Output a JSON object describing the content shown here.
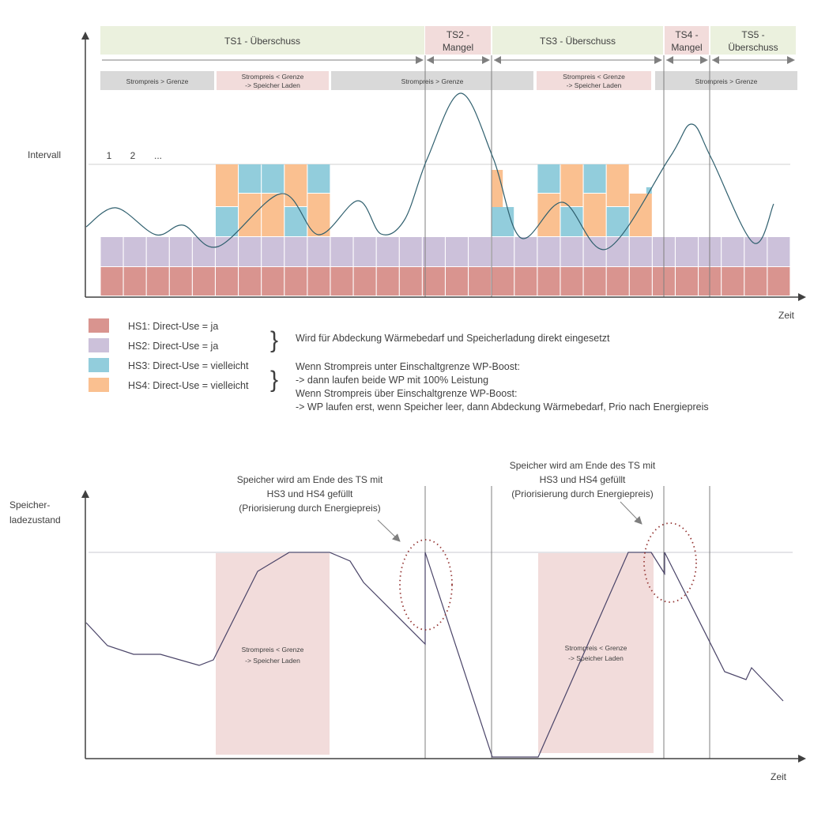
{
  "colors": {
    "hs1": "#d9948f",
    "hs2": "#ccc1da",
    "hs3": "#92cddc",
    "hs4": "#fac090",
    "surplus": "#ebf1de",
    "shortage": "#f2dcdb",
    "grey": "#d9d9d9",
    "curve": "#2f5f6e",
    "soc": "#4a4468"
  },
  "top_chart": {
    "ylabel": "Intervall",
    "xlabel": "Zeit",
    "interval_labels": [
      "1",
      "2",
      "..."
    ],
    "phases": [
      {
        "label1": "TS1 - Überschuss",
        "label2": "",
        "type": "surplus"
      },
      {
        "label1": "TS2 -",
        "label2": "Mangel",
        "type": "shortage"
      },
      {
        "label1": "TS3 - Überschuss",
        "label2": "",
        "type": "surplus"
      },
      {
        "label1": "TS4 -",
        "label2": "Mangel",
        "type": "shortage"
      },
      {
        "label1": "TS5 -",
        "label2": "Überschuss",
        "type": "surplus"
      }
    ],
    "price_bands": [
      {
        "label1": "Strompreis > Grenze",
        "label2": "",
        "type": "grey"
      },
      {
        "label1": "Strompreis < Grenze",
        "label2": "-> Speicher Laden",
        "type": "shortage"
      },
      {
        "label1": "Strompreis > Grenze",
        "label2": "",
        "type": "grey"
      },
      {
        "label1": "Strompreis < Grenze",
        "label2": "-> Speicher Laden",
        "type": "shortage"
      },
      {
        "label1": "Strompreis > Grenze",
        "label2": "",
        "type": "grey"
      }
    ]
  },
  "legend": {
    "items": [
      {
        "label": "HS1: Direct-Use = ja",
        "color_key": "hs1"
      },
      {
        "label": "HS2: Direct-Use = ja",
        "color_key": "hs2"
      },
      {
        "label": "HS3: Direct-Use = vielleicht",
        "color_key": "hs3"
      },
      {
        "label": "HS4: Direct-Use = vielleicht",
        "color_key": "hs4"
      }
    ],
    "note1": "Wird für Abdeckung Wärmebedarf und Speicherladung direkt eingesetzt",
    "note2": [
      "Wenn Strompreis unter Einschaltgrenze WP-Boost:",
      "-> dann laufen beide WP mit 100% Leistung",
      "Wenn Strompreis über Einschaltgrenze WP-Boost:",
      "-> WP laufen erst, wenn Speicher leer, dann Abdeckung Wärmebedarf, Prio nach Energiepreis"
    ]
  },
  "bottom_chart": {
    "ylabel1": "Speicher-",
    "ylabel2": "ladezustand",
    "xlabel": "Zeit",
    "band1": "Strompreis < Grenze",
    "band2": "-> Speicher Laden",
    "annotation": [
      "Speicher wird am Ende des TS mit",
      "HS3 und HS4 gefüllt",
      "(Priorisierung durch Energiepreis)"
    ]
  }
}
